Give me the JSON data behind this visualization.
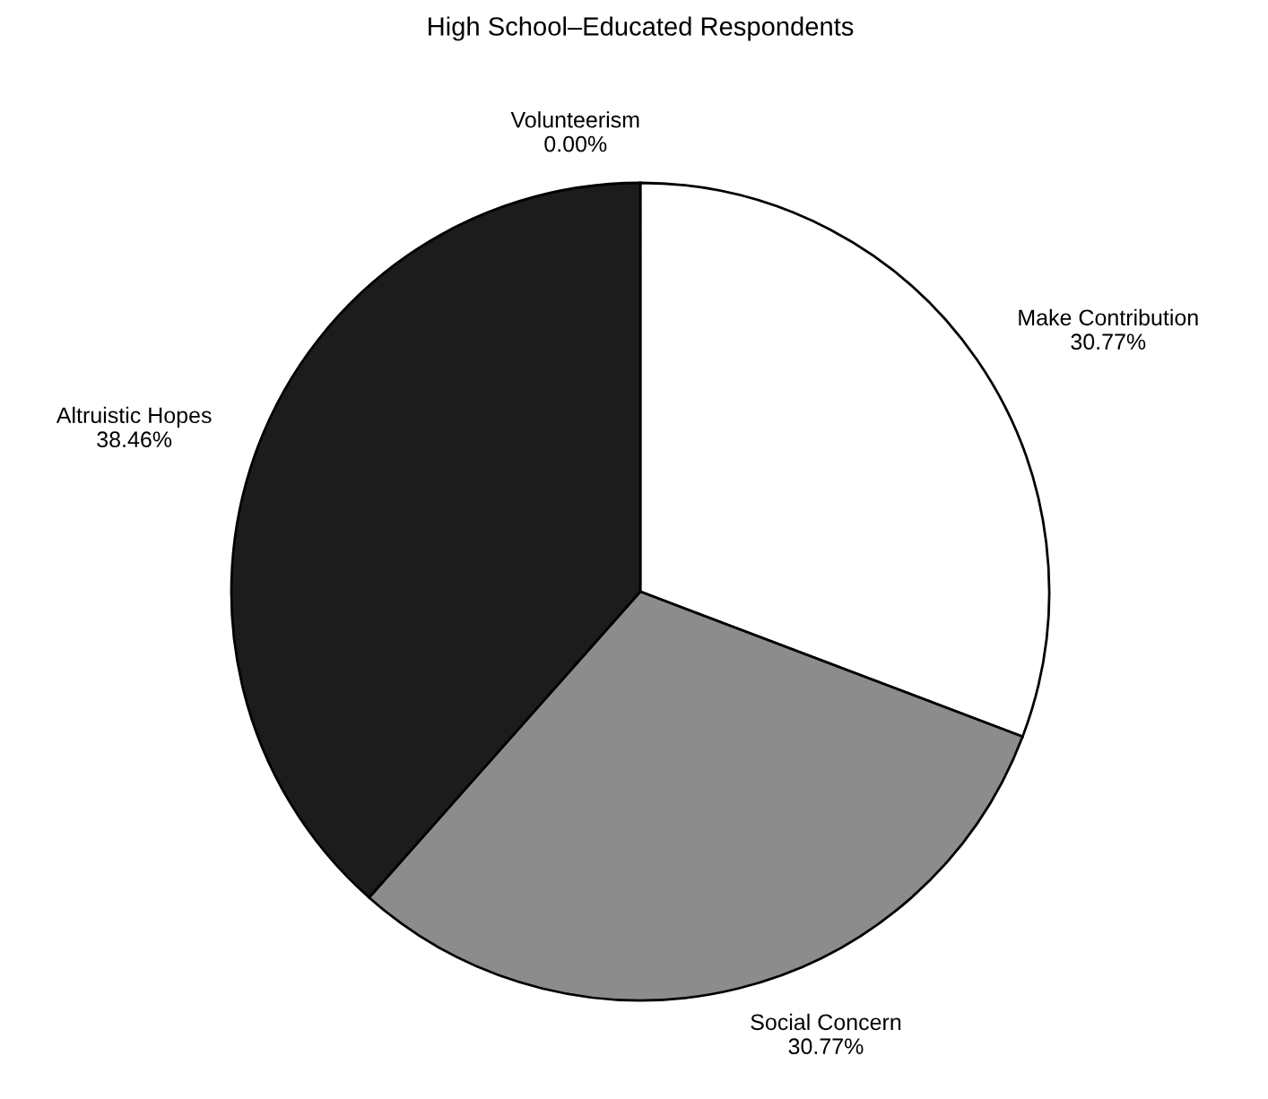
{
  "chart_data": {
    "type": "pie",
    "title": "High School–Educated Respondents",
    "categories": [
      "Volunteerism",
      "Make Contribution",
      "Social Concern",
      "Altruistic Hopes"
    ],
    "values": [
      0.0,
      30.77,
      30.77,
      38.46
    ],
    "value_labels": [
      "0.00%",
      "30.77%",
      "30.77%",
      "38.46%"
    ],
    "colors": [
      "#ffffff",
      "#ffffff",
      "#8c8c8c",
      "#1c1c1c"
    ]
  }
}
